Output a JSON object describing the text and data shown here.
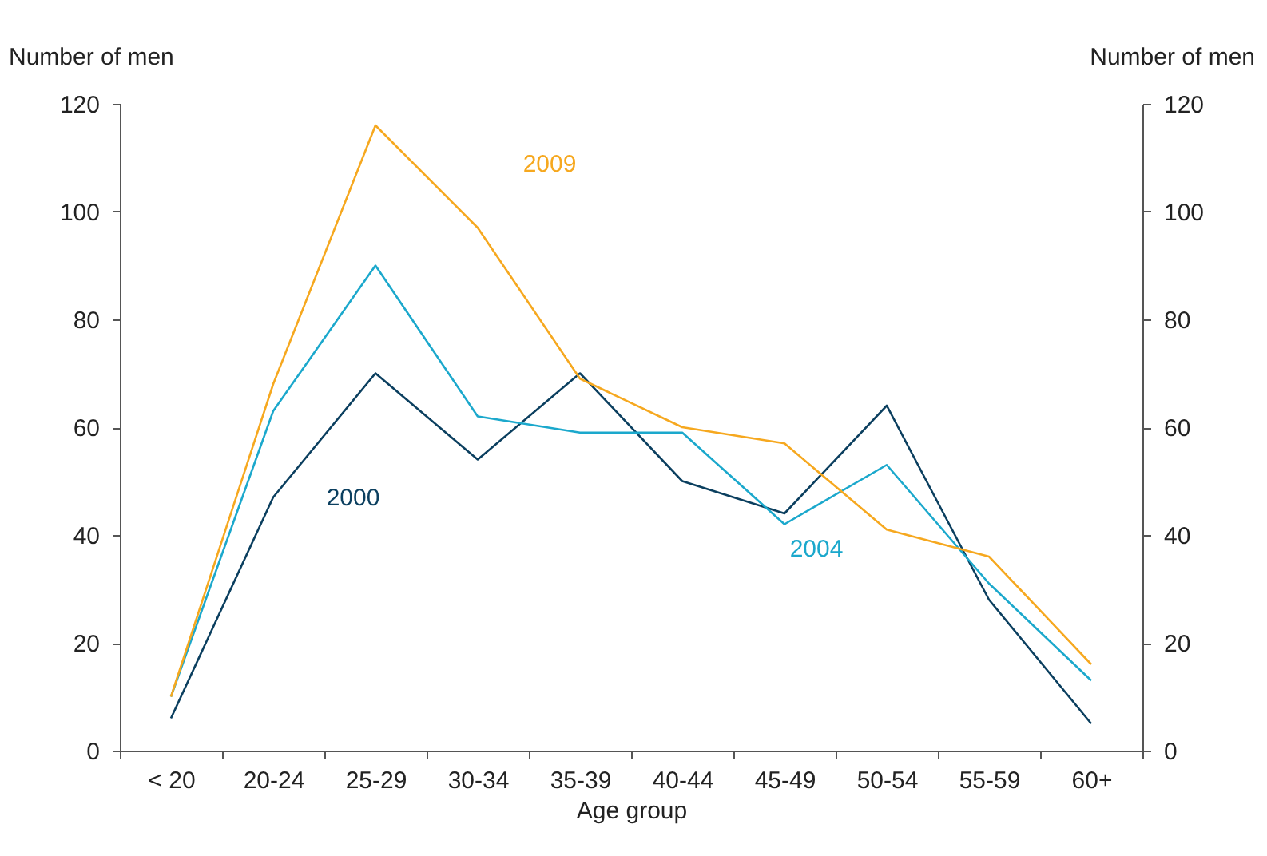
{
  "chart_data": {
    "type": "line",
    "xlabel": "Age group",
    "ylabel": "Number of men",
    "y2label": "Number of men",
    "categories": [
      "< 20",
      "20-24",
      "25-29",
      "30-34",
      "35-39",
      "40-44",
      "45-49",
      "50-54",
      "55-59",
      "60+"
    ],
    "series": [
      {
        "name": "2000",
        "color": "#0b3f5f",
        "values": [
          6,
          47,
          70,
          54,
          70,
          50,
          44,
          64,
          28,
          5
        ]
      },
      {
        "name": "2004",
        "color": "#1ba8cc",
        "values": [
          10,
          63,
          90,
          62,
          59,
          59,
          42,
          53,
          31,
          13
        ]
      },
      {
        "name": "2009",
        "color": "#f6a81f",
        "values": [
          10,
          68,
          116,
          97,
          69,
          60,
          57,
          41,
          36,
          16
        ]
      }
    ],
    "ylim": [
      0,
      120
    ],
    "yticks": [
      0,
      20,
      40,
      60,
      80,
      100,
      120
    ],
    "y2lim": [
      0,
      120
    ],
    "y2ticks": [
      0,
      20,
      40,
      60,
      80,
      100,
      120
    ],
    "grid": false,
    "marker": "none",
    "line_style": "solid"
  }
}
